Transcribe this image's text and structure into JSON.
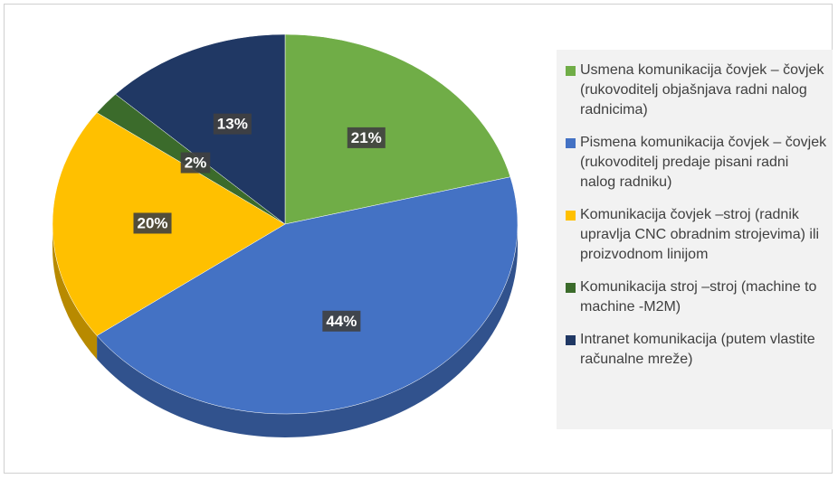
{
  "chart_data": {
    "type": "pie",
    "categories": [
      "Usmena komunikacija čovjek – čovjek (rukovoditelj objašnjava radni nalog radnicima)",
      "Pismena komunikacija čovjek – čovjek (rukovoditelj predaje pisani radni nalog radniku)",
      "Komunikacija čovjek –stroj (radnik upravlja CNC obradnim strojevima) ili proizvodnom linijom",
      "Komunikacija stroj –stroj (machine to machine -M2M)",
      "Intranet komunikacija (putem vlastite računalne mreže)"
    ],
    "values": [
      21,
      44,
      20,
      2,
      13
    ],
    "value_labels": [
      "21%",
      "44%",
      "20%",
      "2%",
      "13%"
    ],
    "colors": [
      "#70ad47",
      "#4472c4",
      "#ffc000",
      "#3b6b2b",
      "#203864"
    ],
    "legend": "right"
  }
}
